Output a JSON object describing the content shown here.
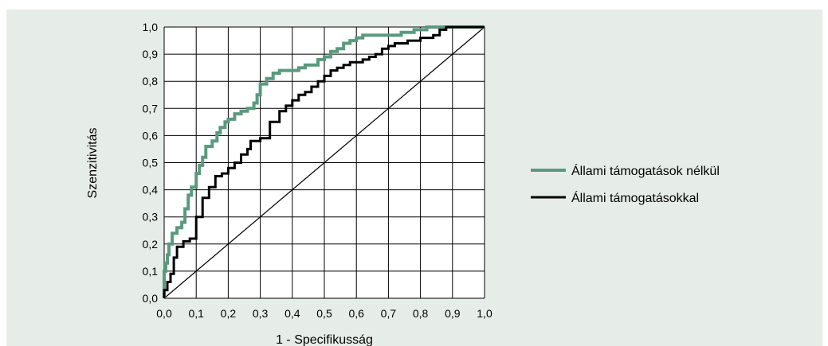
{
  "colors": {
    "background": "#e6ede9",
    "plot_background": "#ffffff",
    "grid": "#000000",
    "series_green": "#5a9a7e",
    "series_black": "#000000",
    "diagonal": "#000000"
  },
  "chart_data": {
    "type": "line",
    "title": "",
    "xlabel": "1 - Specifikusság",
    "ylabel": "Szenzitivitás",
    "xlim": [
      0,
      1
    ],
    "ylim": [
      0,
      1
    ],
    "grid": true,
    "legend_position": "right",
    "xticks": [
      "0,0",
      "0,1",
      "0,2",
      "0,3",
      "0,4",
      "0,5",
      "0,6",
      "0,7",
      "0,8",
      "0,9",
      "1,0"
    ],
    "yticks": [
      "0,0",
      "0,1",
      "0,2",
      "0,3",
      "0,4",
      "0,5",
      "0,6",
      "0,7",
      "0,8",
      "0,9",
      "1,0"
    ],
    "reference_line": {
      "x": [
        0,
        1
      ],
      "y": [
        0,
        1
      ]
    },
    "series": [
      {
        "name": "Állami támogatások nélkül",
        "color": "#5a9a7e",
        "x": [
          0,
          0,
          0.005,
          0.005,
          0.01,
          0.01,
          0.015,
          0.015,
          0.025,
          0.025,
          0.04,
          0.04,
          0.055,
          0.055,
          0.065,
          0.065,
          0.075,
          0.075,
          0.085,
          0.085,
          0.1,
          0.1,
          0.11,
          0.11,
          0.12,
          0.12,
          0.13,
          0.13,
          0.15,
          0.15,
          0.165,
          0.165,
          0.175,
          0.175,
          0.19,
          0.19,
          0.2,
          0.2,
          0.22,
          0.22,
          0.24,
          0.24,
          0.26,
          0.26,
          0.28,
          0.28,
          0.29,
          0.29,
          0.3,
          0.3,
          0.32,
          0.32,
          0.34,
          0.34,
          0.36,
          0.36,
          0.42,
          0.42,
          0.44,
          0.44,
          0.48,
          0.48,
          0.5,
          0.5,
          0.52,
          0.52,
          0.54,
          0.54,
          0.56,
          0.56,
          0.58,
          0.58,
          0.6,
          0.6,
          0.62,
          0.62,
          0.74,
          0.74,
          0.78,
          0.78,
          0.82,
          0.82,
          0.84,
          0.84,
          0.86,
          0.86,
          1.0
        ],
        "y": [
          0,
          0.1,
          0.1,
          0.13,
          0.13,
          0.16,
          0.16,
          0.2,
          0.2,
          0.24,
          0.24,
          0.26,
          0.26,
          0.28,
          0.28,
          0.33,
          0.33,
          0.38,
          0.38,
          0.41,
          0.41,
          0.46,
          0.46,
          0.49,
          0.49,
          0.52,
          0.52,
          0.56,
          0.56,
          0.58,
          0.58,
          0.61,
          0.61,
          0.63,
          0.63,
          0.65,
          0.65,
          0.66,
          0.66,
          0.68,
          0.68,
          0.69,
          0.69,
          0.7,
          0.7,
          0.72,
          0.72,
          0.75,
          0.75,
          0.79,
          0.79,
          0.81,
          0.81,
          0.83,
          0.83,
          0.84,
          0.84,
          0.85,
          0.85,
          0.86,
          0.86,
          0.88,
          0.88,
          0.89,
          0.89,
          0.91,
          0.91,
          0.92,
          0.92,
          0.94,
          0.94,
          0.95,
          0.95,
          0.96,
          0.96,
          0.97,
          0.97,
          0.98,
          0.98,
          0.99,
          0.99,
          1.0,
          1.0,
          1.0,
          1.0,
          1.0,
          1.0
        ]
      },
      {
        "name": "Állami támogatásokkal",
        "color": "#000000",
        "x": [
          0,
          0,
          0.01,
          0.01,
          0.02,
          0.02,
          0.03,
          0.03,
          0.04,
          0.04,
          0.06,
          0.06,
          0.08,
          0.08,
          0.1,
          0.1,
          0.12,
          0.12,
          0.14,
          0.14,
          0.16,
          0.16,
          0.18,
          0.18,
          0.2,
          0.2,
          0.22,
          0.22,
          0.24,
          0.24,
          0.26,
          0.26,
          0.27,
          0.27,
          0.3,
          0.3,
          0.33,
          0.33,
          0.36,
          0.36,
          0.38,
          0.38,
          0.4,
          0.4,
          0.42,
          0.42,
          0.44,
          0.44,
          0.46,
          0.46,
          0.48,
          0.48,
          0.5,
          0.5,
          0.52,
          0.52,
          0.54,
          0.54,
          0.56,
          0.56,
          0.58,
          0.58,
          0.62,
          0.62,
          0.64,
          0.64,
          0.66,
          0.66,
          0.68,
          0.68,
          0.7,
          0.7,
          0.72,
          0.72,
          0.76,
          0.76,
          0.8,
          0.8,
          0.84,
          0.84,
          0.86,
          0.86,
          0.88,
          0.88,
          1.0
        ],
        "y": [
          0,
          0.03,
          0.03,
          0.06,
          0.06,
          0.09,
          0.09,
          0.15,
          0.15,
          0.19,
          0.19,
          0.21,
          0.21,
          0.22,
          0.22,
          0.3,
          0.3,
          0.37,
          0.37,
          0.41,
          0.41,
          0.45,
          0.45,
          0.46,
          0.46,
          0.48,
          0.48,
          0.5,
          0.5,
          0.53,
          0.53,
          0.55,
          0.55,
          0.58,
          0.58,
          0.59,
          0.59,
          0.65,
          0.65,
          0.69,
          0.69,
          0.71,
          0.71,
          0.73,
          0.73,
          0.75,
          0.75,
          0.76,
          0.76,
          0.78,
          0.78,
          0.8,
          0.8,
          0.82,
          0.82,
          0.84,
          0.84,
          0.85,
          0.85,
          0.86,
          0.86,
          0.87,
          0.87,
          0.88,
          0.88,
          0.89,
          0.89,
          0.9,
          0.9,
          0.92,
          0.92,
          0.93,
          0.93,
          0.94,
          0.94,
          0.95,
          0.95,
          0.96,
          0.96,
          0.97,
          0.97,
          0.99,
          0.99,
          1.0,
          1.0
        ]
      }
    ]
  }
}
